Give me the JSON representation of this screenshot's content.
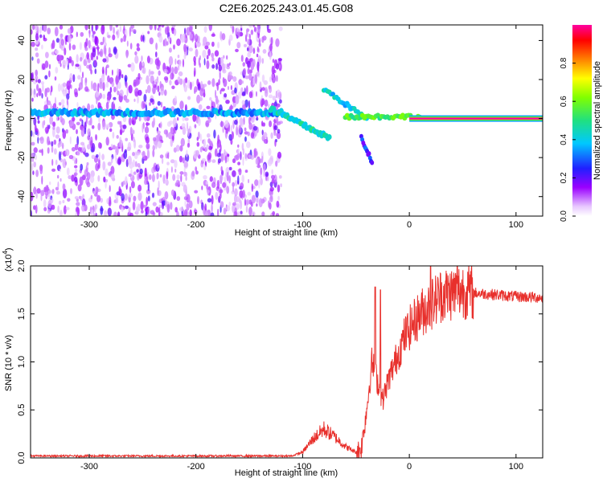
{
  "figure": {
    "title": "C2E6.2025.243.01.45.G08"
  },
  "chart_data": [
    {
      "type": "heatmap",
      "xlabel": "Height of straight line (km)",
      "ylabel": "Frequency (Hz)",
      "xlim": [
        -355,
        125
      ],
      "ylim": [
        -50,
        48
      ],
      "xticks": [
        -300,
        -200,
        -100,
        0,
        100
      ],
      "yticks": [
        -40,
        -20,
        0,
        20,
        40
      ],
      "colorbar": {
        "label": "Normalized spectral amplitude",
        "range": [
          0,
          1
        ],
        "ticks": [
          0.0,
          0.2,
          0.4,
          0.6,
          0.8
        ],
        "tick_labels": [
          "0.0",
          "0.2",
          "0.4",
          "0.6",
          "0.8"
        ]
      },
      "features": {
        "noise_region_x": [
          -355,
          -120
        ],
        "main_band": {
          "x": [
            -355,
            -120
          ],
          "freq_hz": 3,
          "amplitude": 0.35
        },
        "descending_branch": {
          "x": [
            -130,
            -75
          ],
          "freq_start_hz": 5,
          "freq_end_hz": -10
        },
        "upper_branch": {
          "x": [
            -80,
            -40
          ],
          "freq_start_hz": 15,
          "freq_end_hz": 0
        },
        "lower_branch": {
          "x": [
            -45,
            -35
          ],
          "freq_start_hz": -10,
          "freq_end_hz": -22
        },
        "converging_band": {
          "x": [
            -60,
            10
          ],
          "freq_hz": 1
        },
        "flat_line": {
          "x": [
            0,
            125
          ],
          "freq_hz": 0,
          "amplitude": 1.0
        }
      }
    },
    {
      "type": "line",
      "xlabel": "Height of straight line (km)",
      "ylabel": "SNR (10 * v/v)",
      "y_multiplier_label": "(x10",
      "y_multiplier_exp": "4",
      "xlim": [
        -355,
        125
      ],
      "ylim": [
        0,
        2.0
      ],
      "xticks": [
        -300,
        -200,
        -100,
        0,
        100
      ],
      "yticks": [
        0.0,
        0.5,
        1.0,
        1.5,
        2.0
      ],
      "ytick_labels": [
        "0.0",
        "0.5",
        "1.0",
        "1.5",
        "2.0"
      ],
      "color": "#e8302c",
      "envelope": {
        "x": [
          -355,
          -110,
          -100,
          -90,
          -80,
          -70,
          -60,
          -50,
          -45,
          -40,
          -35,
          -30,
          -25,
          -20,
          -15,
          -10,
          -5,
          0,
          10,
          20,
          30,
          40,
          50,
          60,
          80,
          100,
          125
        ],
        "y": [
          0.02,
          0.02,
          0.06,
          0.2,
          0.3,
          0.22,
          0.12,
          0.06,
          0.1,
          0.5,
          1.0,
          0.8,
          0.6,
          0.8,
          0.95,
          1.1,
          1.25,
          1.35,
          1.5,
          1.6,
          1.7,
          1.72,
          1.75,
          1.72,
          1.7,
          1.68,
          1.67
        ]
      },
      "peaks": [
        {
          "x": -32,
          "y": 1.78
        },
        {
          "x": -27,
          "y": 1.75
        },
        {
          "x": 20,
          "y": 2.0
        },
        {
          "x": 45,
          "y": 2.0
        }
      ]
    }
  ]
}
